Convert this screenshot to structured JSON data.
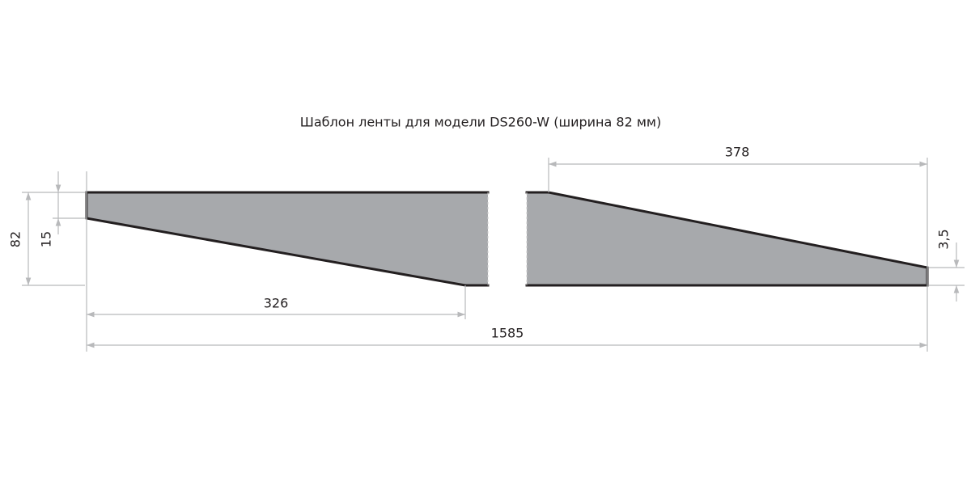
{
  "title": "Шаблон ленты для модели DS260-W (ширина 82 мм)",
  "dimensions": {
    "right_taper": "378",
    "height": "82",
    "left_offset": "15",
    "right_offset": "3,5",
    "left_taper": "326",
    "total_length": "1585"
  }
}
